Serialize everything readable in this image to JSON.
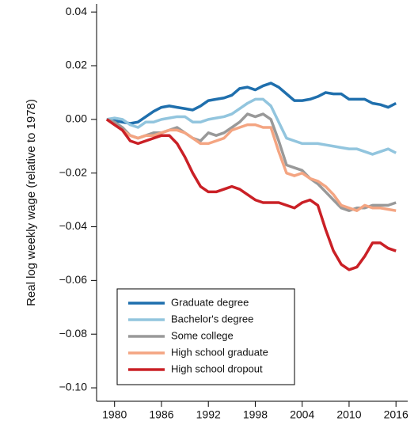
{
  "chart_data": {
    "type": "line",
    "y_label": "Real log weekly wage (relative to 1978)",
    "x": [
      1979,
      1980,
      1981,
      1982,
      1983,
      1984,
      1985,
      1986,
      1987,
      1988,
      1989,
      1990,
      1991,
      1992,
      1993,
      1994,
      1995,
      1996,
      1997,
      1998,
      1999,
      2000,
      2001,
      2002,
      2003,
      2004,
      2005,
      2006,
      2007,
      2008,
      2009,
      2010,
      2011,
      2012,
      2013,
      2014,
      2015,
      2016
    ],
    "xlim": [
      1977.7,
      2017.5
    ],
    "xticks": [
      1980,
      1986,
      1992,
      1998,
      2004,
      2010,
      2016
    ],
    "ylim": [
      -0.105,
      0.043
    ],
    "yticks": [
      {
        "value": -0.1,
        "label": "−0.10"
      },
      {
        "value": -0.08,
        "label": "−0.08"
      },
      {
        "value": -0.06,
        "label": "−0.06"
      },
      {
        "value": -0.04,
        "label": "−0.04"
      },
      {
        "value": -0.02,
        "label": "−0.02"
      },
      {
        "value": 0,
        "label": "0.00"
      },
      0.02,
      0.04
    ],
    "legend": "lower left",
    "series": [
      {
        "name": "Graduate degree",
        "color": "#1f6fad",
        "values": [
          0,
          -0.0005,
          -0.001,
          -0.0015,
          -0.001,
          0.001,
          0.003,
          0.0045,
          0.005,
          0.0045,
          0.004,
          0.0035,
          0.005,
          0.007,
          0.0075,
          0.008,
          0.009,
          0.0115,
          0.012,
          0.011,
          0.0125,
          0.0135,
          0.012,
          0.0095,
          0.007,
          0.007,
          0.0075,
          0.0085,
          0.01,
          0.0095,
          0.0095,
          0.0075,
          0.0075,
          0.0075,
          0.006,
          0.0055,
          0.0045,
          0.006
        ]
      },
      {
        "name": "Bachelor's degree",
        "color": "#92c5de",
        "values": [
          0,
          0.0005,
          0,
          -0.002,
          -0.003,
          -0.001,
          -0.001,
          0,
          0.0005,
          0.001,
          0.001,
          -0.001,
          -0.001,
          0,
          0.0005,
          0.001,
          0.002,
          0.004,
          0.006,
          0.0075,
          0.0075,
          0.005,
          -0.001,
          -0.007,
          -0.008,
          -0.009,
          -0.009,
          -0.009,
          -0.0095,
          -0.01,
          -0.0105,
          -0.011,
          -0.011,
          -0.012,
          -0.013,
          -0.012,
          -0.011,
          -0.0125
        ]
      },
      {
        "name": "Some college",
        "color": "#999999",
        "values": [
          0,
          -0.001,
          -0.003,
          -0.006,
          -0.007,
          -0.006,
          -0.005,
          -0.005,
          -0.004,
          -0.003,
          -0.005,
          -0.007,
          -0.008,
          -0.005,
          -0.006,
          -0.005,
          -0.003,
          -0.001,
          0.002,
          0.001,
          0.002,
          0,
          -0.008,
          -0.017,
          -0.018,
          -0.019,
          -0.022,
          -0.024,
          -0.027,
          -0.03,
          -0.033,
          -0.034,
          -0.033,
          -0.033,
          -0.032,
          -0.032,
          -0.032,
          -0.031
        ]
      },
      {
        "name": "High school graduate",
        "color": "#f4a582",
        "values": [
          0,
          -0.002,
          -0.004,
          -0.006,
          -0.007,
          -0.006,
          -0.006,
          -0.005,
          -0.004,
          -0.004,
          -0.005,
          -0.007,
          -0.009,
          -0.009,
          -0.008,
          -0.007,
          -0.004,
          -0.003,
          -0.002,
          -0.002,
          -0.003,
          -0.003,
          -0.012,
          -0.02,
          -0.021,
          -0.02,
          -0.022,
          -0.023,
          -0.025,
          -0.028,
          -0.032,
          -0.033,
          -0.034,
          -0.032,
          -0.033,
          -0.033,
          -0.0335,
          -0.034
        ]
      },
      {
        "name": "High school dropout",
        "color": "#ca2026",
        "values": [
          0,
          -0.002,
          -0.004,
          -0.008,
          -0.009,
          -0.008,
          -0.007,
          -0.006,
          -0.006,
          -0.009,
          -0.014,
          -0.02,
          -0.025,
          -0.027,
          -0.027,
          -0.026,
          -0.025,
          -0.026,
          -0.028,
          -0.03,
          -0.031,
          -0.031,
          -0.031,
          -0.032,
          -0.033,
          -0.031,
          -0.03,
          -0.032,
          -0.041,
          -0.049,
          -0.054,
          -0.056,
          -0.055,
          -0.051,
          -0.046,
          -0.046,
          -0.048,
          -0.049
        ]
      }
    ]
  }
}
